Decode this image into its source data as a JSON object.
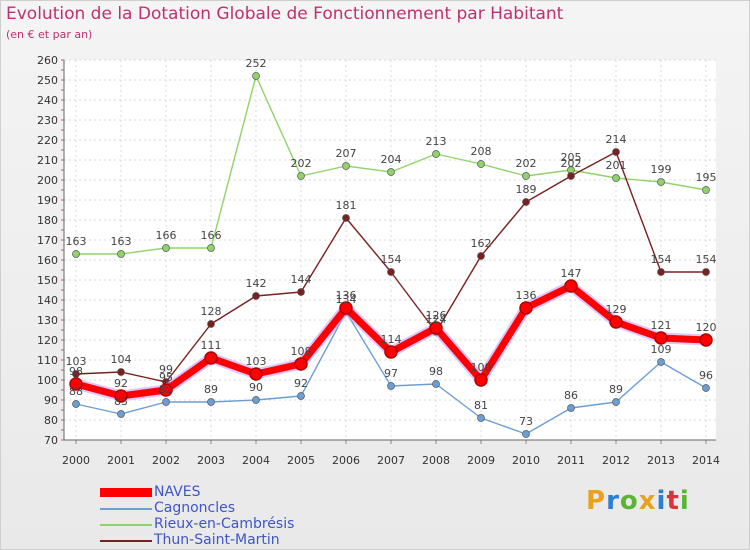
{
  "header": {
    "title": "Evolution de la Dotation Globale de Fonctionnement par Habitant",
    "subtitle": "(en € et par an)"
  },
  "logo": {
    "text": "Proxiti",
    "letter_colors": [
      "#e8a21c",
      "#2a7fd4",
      "#5cb531",
      "#e8a21c",
      "#2a7fd4",
      "#d8343b",
      "#5cb531"
    ]
  },
  "chart_data": {
    "type": "line",
    "title": "Evolution de la Dotation Globale de Fonctionnement par Habitant",
    "subtitle": "(en € et par an)",
    "xlabel": "",
    "ylabel": "",
    "x": [
      "2000",
      "2001",
      "2002",
      "2003",
      "2004",
      "2005",
      "2006",
      "2007",
      "2008",
      "2009",
      "2010",
      "2011",
      "2012",
      "2013",
      "2014"
    ],
    "ylim": [
      70,
      260
    ],
    "yticks": [
      70,
      80,
      90,
      100,
      110,
      120,
      130,
      140,
      150,
      160,
      170,
      180,
      190,
      200,
      210,
      220,
      230,
      240,
      250,
      260
    ],
    "grid": true,
    "legend_position": "bottom-left",
    "series": [
      {
        "name": "NAVES",
        "color": "#ff0000",
        "highlight": true,
        "values": [
          98,
          92,
          95,
          111,
          103,
          108,
          136,
          114,
          126,
          100,
          136,
          147,
          129,
          121,
          120
        ]
      },
      {
        "name": "Cagnoncles",
        "color": "#6b9fd4",
        "values": [
          88,
          83,
          89,
          89,
          90,
          92,
          134,
          97,
          98,
          81,
          73,
          86,
          89,
          109,
          96
        ]
      },
      {
        "name": "Rieux-en-Cambrésis",
        "color": "#8fd36a",
        "values": [
          163,
          163,
          166,
          166,
          252,
          202,
          207,
          204,
          213,
          208,
          202,
          205,
          201,
          199,
          195
        ]
      },
      {
        "name": "Thun-Saint-Martin",
        "color": "#7a2020",
        "values": [
          103,
          104,
          99,
          128,
          142,
          144,
          181,
          154,
          124,
          162,
          189,
          202,
          214,
          154,
          154
        ]
      }
    ],
    "data_labels": {
      "NAVES": [
        "98",
        "92",
        "95",
        "111",
        "103",
        "108",
        "136",
        "114",
        "126",
        "100",
        "136",
        "147",
        "129",
        "121",
        "120"
      ],
      "Cagnoncles": [
        "88",
        "83",
        "89",
        "89",
        "90",
        "92",
        "134",
        "97",
        "98",
        "81",
        "73",
        "86",
        "89",
        "109",
        "96"
      ],
      "Rieux-en-Cambrésis": [
        "163",
        "163",
        "166",
        "166",
        "252",
        "202",
        "207",
        "204",
        "213",
        "208",
        "202",
        "205",
        "201",
        "199",
        "195"
      ],
      "Thun-Saint-Martin": [
        "103",
        "104",
        "99",
        "128",
        "142",
        "144",
        "181",
        "154",
        "124",
        "162",
        "189",
        "202",
        "214",
        "154",
        "154"
      ]
    }
  }
}
